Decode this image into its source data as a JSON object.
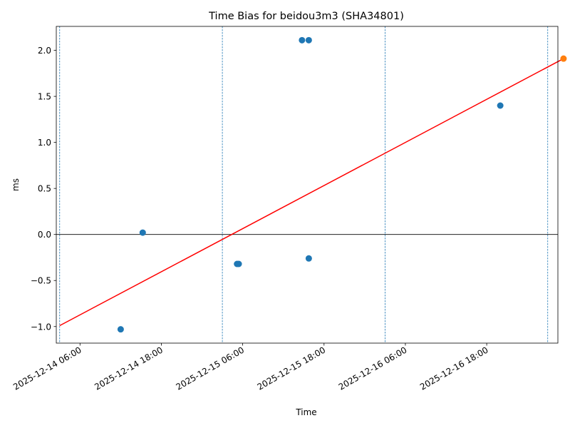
{
  "chart_data": {
    "type": "scatter",
    "title": "Time Bias for beidou3m3 (SHA34801)",
    "xlabel": "Time",
    "ylabel": "ms",
    "xlim": [
      "2025-12-14 02:30",
      "2025-12-17 04:30"
    ],
    "ylim": [
      -1.18,
      2.26
    ],
    "yticks": [
      -1.0,
      -0.5,
      0.0,
      0.5,
      1.0,
      1.5,
      2.0
    ],
    "yticklabels": [
      "−1.0",
      "−0.5",
      "0.0",
      "0.5",
      "1.0",
      "1.5",
      "2.0"
    ],
    "xticks": [
      "2025-12-14 06:00",
      "2025-12-14 18:00",
      "2025-12-15 06:00",
      "2025-12-15 18:00",
      "2025-12-16 06:00",
      "2025-12-16 18:00"
    ],
    "xticklabels": [
      "2025-12-14 06:00",
      "2025-12-14 18:00",
      "2025-12-15 06:00",
      "2025-12-15 18:00",
      "2025-12-16 06:00",
      "2025-12-16 18:00"
    ],
    "vertical_lines": [
      "2025-12-14 03:00",
      "2025-12-15 03:00",
      "2025-12-16 03:00",
      "2025-12-17 03:00"
    ],
    "zero_line": 0,
    "series": [
      {
        "color": "#1f77b4",
        "points": [
          {
            "x": "2025-12-14 12:00",
            "y": -1.03
          },
          {
            "x": "2025-12-14 15:15",
            "y": 0.02
          },
          {
            "x": "2025-12-15 05:10",
            "y": -0.32
          },
          {
            "x": "2025-12-15 05:25",
            "y": -0.32
          },
          {
            "x": "2025-12-15 14:45",
            "y": 2.11
          },
          {
            "x": "2025-12-15 15:45",
            "y": 2.11
          },
          {
            "x": "2025-12-15 15:45",
            "y": -0.26
          },
          {
            "x": "2025-12-16 20:00",
            "y": 1.4
          }
        ]
      },
      {
        "color": "#ff7f0e",
        "points": [
          {
            "x": "2025-12-17 05:20",
            "y": 1.91
          }
        ]
      }
    ],
    "trend_line": {
      "color": "#ff0000",
      "start": {
        "x": "2025-12-14 03:00",
        "y": -0.99
      },
      "end": {
        "x": "2025-12-17 05:20",
        "y": 1.91
      }
    }
  }
}
